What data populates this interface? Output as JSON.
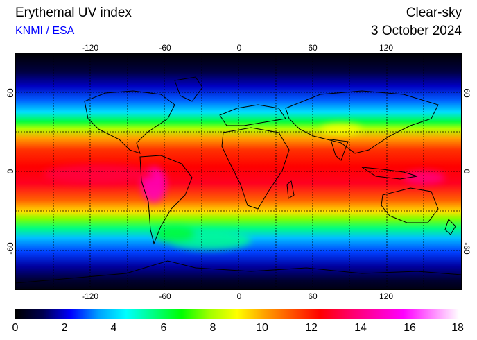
{
  "header": {
    "title": "Erythemal UV index",
    "credit": "KNMI / ESA",
    "product": "Clear-sky",
    "date": "3 October 2024"
  },
  "map": {
    "projection": "equirectangular",
    "lon_ticks": [
      "-120",
      "-60",
      "0",
      "60",
      "120"
    ],
    "lat_ticks": [
      "60",
      "0",
      "-60"
    ],
    "colormap": {
      "stops": [
        "#000000",
        "#000050",
        "#0000ff",
        "#00a0ff",
        "#00ffff",
        "#00ff80",
        "#00ff00",
        "#a0ff00",
        "#ffff00",
        "#ffa000",
        "#ff5000",
        "#ff0000",
        "#ff0060",
        "#ff00b0",
        "#ff00ff",
        "#ff80ff",
        "#ffffff"
      ]
    }
  },
  "colorbar": {
    "labels": [
      "0",
      "2",
      "4",
      "6",
      "8",
      "10",
      "12",
      "14",
      "16",
      "18"
    ],
    "min": 0,
    "max": 18
  }
}
